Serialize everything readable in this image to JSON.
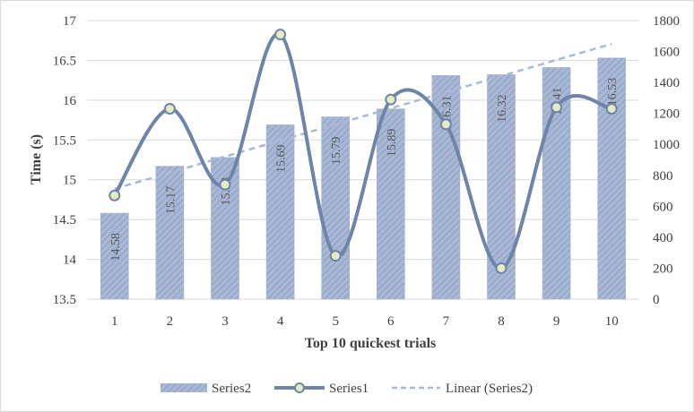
{
  "chart_data": {
    "type": "bar",
    "title": "",
    "xlabel": "Top 10 quickest trials",
    "ylabel": "Time (s)",
    "categories": [
      "1",
      "2",
      "3",
      "4",
      "5",
      "6",
      "7",
      "8",
      "9",
      "10"
    ],
    "y_left": {
      "min": 13.5,
      "max": 17,
      "step": 0.5,
      "ticks": [
        "13.5",
        "14",
        "14.5",
        "15",
        "15.5",
        "16",
        "16.5",
        "17"
      ]
    },
    "y_right": {
      "min": 0,
      "max": 1800,
      "step": 200,
      "ticks": [
        "0",
        "200",
        "400",
        "600",
        "800",
        "1000",
        "1200",
        "1400",
        "1600",
        "1800"
      ]
    },
    "series": [
      {
        "name": "Series2",
        "type": "bar",
        "axis": "left",
        "values": [
          14.58,
          15.17,
          15.28,
          15.69,
          15.79,
          15.89,
          16.31,
          16.32,
          16.41,
          16.53
        ],
        "labels": [
          "14.58",
          "15.17",
          "15.28",
          "15.69",
          "15.79",
          "15.89",
          "16.31",
          "16.32",
          "16.41",
          "16.53"
        ]
      },
      {
        "name": "Series1",
        "type": "line",
        "axis": "right",
        "smooth": true,
        "markers": true,
        "values": [
          670,
          1230,
          740,
          1710,
          280,
          1290,
          1130,
          200,
          1240,
          1230
        ]
      },
      {
        "name": "Linear (Series2)",
        "type": "trendline",
        "axis": "left",
        "dashed": true,
        "of_series": "Series2"
      }
    ],
    "grid": true,
    "legend_position": "bottom",
    "colors": {
      "bar": "#a8b7d4",
      "bar_stripe": "#8ea0c4",
      "line": "#6e84a8",
      "marker": "#e4ecc4",
      "trend": "#a9b9d6",
      "grid": "#d9d9d9"
    },
    "legend": {
      "items": [
        "Series2",
        "Series1",
        "Linear (Series2)"
      ]
    }
  }
}
